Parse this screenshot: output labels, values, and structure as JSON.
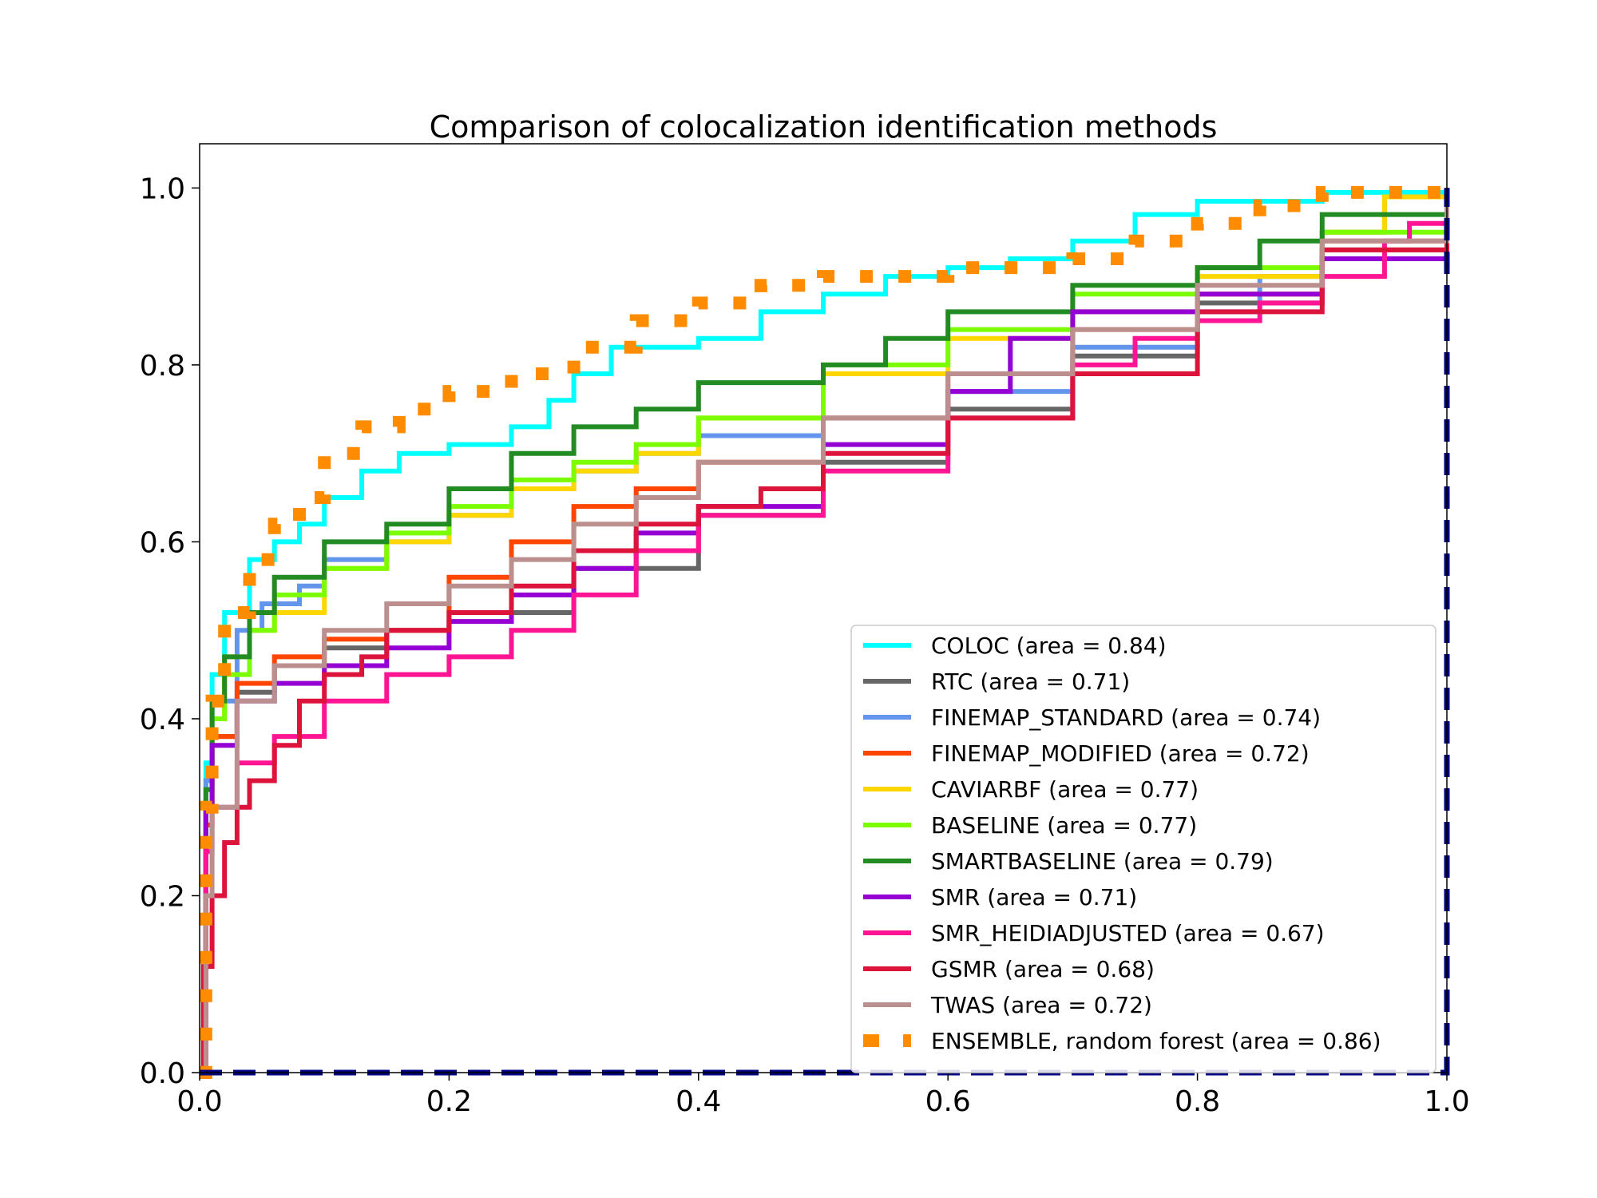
{
  "chart_data": {
    "type": "line",
    "title": "Comparison of colocalization identification methods",
    "xlabel": "",
    "ylabel": "",
    "xlim": [
      0.0,
      1.0
    ],
    "ylim": [
      0.0,
      1.05
    ],
    "xticks": [
      "0.0",
      "0.2",
      "0.4",
      "0.6",
      "0.8",
      "1.0"
    ],
    "yticks": [
      "0.0",
      "0.2",
      "0.4",
      "0.6",
      "0.8",
      "1.0"
    ],
    "grid": false,
    "legend_position": "lower-right",
    "series": [
      {
        "name": "COLOC (area = 0.84)",
        "color": "#00ffff",
        "style": "solid",
        "x": [
          0,
          0.005,
          0.01,
          0.02,
          0.04,
          0.06,
          0.08,
          0.1,
          0.13,
          0.16,
          0.2,
          0.25,
          0.28,
          0.3,
          0.33,
          0.4,
          0.45,
          0.5,
          0.55,
          0.6,
          0.65,
          0.7,
          0.75,
          0.8,
          0.9,
          1.0
        ],
        "y": [
          0,
          0.35,
          0.45,
          0.52,
          0.58,
          0.6,
          0.62,
          0.65,
          0.68,
          0.7,
          0.71,
          0.73,
          0.76,
          0.79,
          0.82,
          0.83,
          0.86,
          0.88,
          0.9,
          0.91,
          0.92,
          0.94,
          0.97,
          0.985,
          0.995,
          1.0
        ]
      },
      {
        "name": "RTC (area = 0.71)",
        "color": "#666666",
        "style": "solid",
        "x": [
          0,
          0.005,
          0.01,
          0.03,
          0.06,
          0.1,
          0.15,
          0.2,
          0.3,
          0.4,
          0.5,
          0.6,
          0.7,
          0.8,
          0.9,
          1.0
        ],
        "y": [
          0,
          0.3,
          0.38,
          0.43,
          0.46,
          0.48,
          0.5,
          0.52,
          0.57,
          0.63,
          0.69,
          0.75,
          0.81,
          0.87,
          0.93,
          1.0
        ]
      },
      {
        "name": "FINEMAP_STANDARD (area = 0.74)",
        "color": "#6495ed",
        "style": "solid",
        "x": [
          0,
          0.005,
          0.01,
          0.03,
          0.05,
          0.08,
          0.1,
          0.15,
          0.2,
          0.25,
          0.3,
          0.35,
          0.4,
          0.5,
          0.6,
          0.7,
          0.8,
          0.85,
          0.9,
          0.95,
          1.0
        ],
        "y": [
          0,
          0.33,
          0.42,
          0.5,
          0.53,
          0.55,
          0.58,
          0.6,
          0.63,
          0.66,
          0.68,
          0.7,
          0.72,
          0.74,
          0.77,
          0.82,
          0.86,
          0.9,
          0.95,
          0.99,
          1.0
        ]
      },
      {
        "name": "FINEMAP_MODIFIED (area = 0.72)",
        "color": "#ff4500",
        "style": "solid",
        "x": [
          0,
          0.005,
          0.01,
          0.03,
          0.06,
          0.1,
          0.15,
          0.2,
          0.25,
          0.3,
          0.35,
          0.4,
          0.5,
          0.6,
          0.7,
          0.8,
          0.9,
          1.0
        ],
        "y": [
          0,
          0.28,
          0.38,
          0.44,
          0.47,
          0.49,
          0.5,
          0.56,
          0.6,
          0.64,
          0.66,
          0.69,
          0.74,
          0.79,
          0.84,
          0.88,
          0.94,
          1.0
        ]
      },
      {
        "name": "CAVIARBF (area = 0.77)",
        "color": "#ffd700",
        "style": "solid",
        "x": [
          0,
          0.005,
          0.01,
          0.02,
          0.04,
          0.06,
          0.1,
          0.15,
          0.2,
          0.25,
          0.3,
          0.35,
          0.4,
          0.5,
          0.6,
          0.7,
          0.8,
          0.9,
          0.95,
          1.0
        ],
        "y": [
          0,
          0.3,
          0.4,
          0.47,
          0.5,
          0.52,
          0.57,
          0.6,
          0.63,
          0.66,
          0.68,
          0.7,
          0.74,
          0.79,
          0.83,
          0.86,
          0.9,
          0.95,
          0.99,
          1.0
        ]
      },
      {
        "name": "BASELINE (area = 0.77)",
        "color": "#7cfc00",
        "style": "solid",
        "x": [
          0,
          0.005,
          0.01,
          0.02,
          0.04,
          0.06,
          0.1,
          0.15,
          0.2,
          0.25,
          0.3,
          0.35,
          0.4,
          0.5,
          0.6,
          0.7,
          0.8,
          0.9,
          1.0
        ],
        "y": [
          0,
          0.3,
          0.4,
          0.45,
          0.5,
          0.54,
          0.57,
          0.61,
          0.64,
          0.67,
          0.69,
          0.71,
          0.74,
          0.8,
          0.84,
          0.88,
          0.91,
          0.95,
          1.0
        ]
      },
      {
        "name": "SMARTBASELINE (area = 0.79)",
        "color": "#228b22",
        "style": "solid",
        "x": [
          0,
          0.005,
          0.01,
          0.02,
          0.04,
          0.06,
          0.1,
          0.15,
          0.2,
          0.25,
          0.3,
          0.35,
          0.4,
          0.5,
          0.55,
          0.6,
          0.7,
          0.8,
          0.85,
          0.9,
          1.0
        ],
        "y": [
          0,
          0.32,
          0.42,
          0.47,
          0.52,
          0.56,
          0.6,
          0.62,
          0.66,
          0.7,
          0.73,
          0.75,
          0.78,
          0.8,
          0.83,
          0.86,
          0.89,
          0.91,
          0.94,
          0.97,
          1.0
        ]
      },
      {
        "name": "SMR (area = 0.71)",
        "color": "#9400d3",
        "style": "solid",
        "x": [
          0,
          0.005,
          0.01,
          0.03,
          0.06,
          0.1,
          0.15,
          0.2,
          0.25,
          0.3,
          0.35,
          0.4,
          0.5,
          0.6,
          0.65,
          0.7,
          0.8,
          0.9,
          1.0
        ],
        "y": [
          0,
          0.3,
          0.37,
          0.42,
          0.44,
          0.46,
          0.48,
          0.51,
          0.54,
          0.57,
          0.61,
          0.64,
          0.71,
          0.77,
          0.83,
          0.86,
          0.88,
          0.92,
          1.0
        ]
      },
      {
        "name": "SMR_HEIDIADJUSTED (area = 0.67)",
        "color": "#ff1493",
        "style": "solid",
        "x": [
          0,
          0.005,
          0.01,
          0.03,
          0.06,
          0.1,
          0.15,
          0.2,
          0.25,
          0.3,
          0.35,
          0.4,
          0.5,
          0.6,
          0.7,
          0.75,
          0.8,
          0.85,
          0.9,
          0.95,
          0.97,
          1.0
        ],
        "y": [
          0,
          0.25,
          0.3,
          0.35,
          0.38,
          0.42,
          0.45,
          0.47,
          0.5,
          0.54,
          0.59,
          0.63,
          0.68,
          0.74,
          0.8,
          0.83,
          0.85,
          0.87,
          0.9,
          0.94,
          0.96,
          0.99
        ]
      },
      {
        "name": "GSMR (area = 0.68)",
        "color": "#dc143c",
        "style": "solid",
        "x": [
          0,
          0.003,
          0.01,
          0.02,
          0.03,
          0.04,
          0.06,
          0.08,
          0.1,
          0.13,
          0.15,
          0.2,
          0.25,
          0.3,
          0.35,
          0.4,
          0.45,
          0.5,
          0.6,
          0.7,
          0.8,
          0.9,
          1.0
        ],
        "y": [
          0,
          0.12,
          0.2,
          0.26,
          0.3,
          0.33,
          0.37,
          0.42,
          0.45,
          0.47,
          0.5,
          0.52,
          0.55,
          0.59,
          0.62,
          0.64,
          0.66,
          0.7,
          0.74,
          0.79,
          0.86,
          0.93,
          1.0
        ]
      },
      {
        "name": "TWAS (area = 0.72)",
        "color": "#bc8f8f",
        "style": "solid",
        "x": [
          0,
          0.005,
          0.01,
          0.03,
          0.06,
          0.1,
          0.15,
          0.2,
          0.25,
          0.3,
          0.35,
          0.4,
          0.5,
          0.6,
          0.7,
          0.8,
          0.9,
          1.0
        ],
        "y": [
          0,
          0.2,
          0.3,
          0.42,
          0.46,
          0.5,
          0.53,
          0.55,
          0.58,
          0.62,
          0.65,
          0.69,
          0.74,
          0.79,
          0.84,
          0.89,
          0.94,
          1.0
        ]
      },
      {
        "name": "ENSEMBLE, random forest (area = 0.86)",
        "color": "#ff8c00",
        "style": "dotted-thick",
        "x": [
          0,
          0.005,
          0.01,
          0.02,
          0.04,
          0.06,
          0.08,
          0.1,
          0.13,
          0.16,
          0.2,
          0.25,
          0.3,
          0.35,
          0.4,
          0.45,
          0.5,
          0.6,
          0.7,
          0.75,
          0.8,
          0.85,
          0.9,
          1.0
        ],
        "y": [
          0,
          0.3,
          0.42,
          0.52,
          0.58,
          0.62,
          0.65,
          0.7,
          0.73,
          0.75,
          0.77,
          0.79,
          0.82,
          0.85,
          0.87,
          0.89,
          0.9,
          0.91,
          0.92,
          0.94,
          0.96,
          0.98,
          0.995,
          1.0
        ]
      },
      {
        "name": "",
        "color": "#000080",
        "style": "dashed-diagonal",
        "x": [
          0,
          1.0
        ],
        "y": [
          0,
          1.0
        ]
      }
    ]
  }
}
